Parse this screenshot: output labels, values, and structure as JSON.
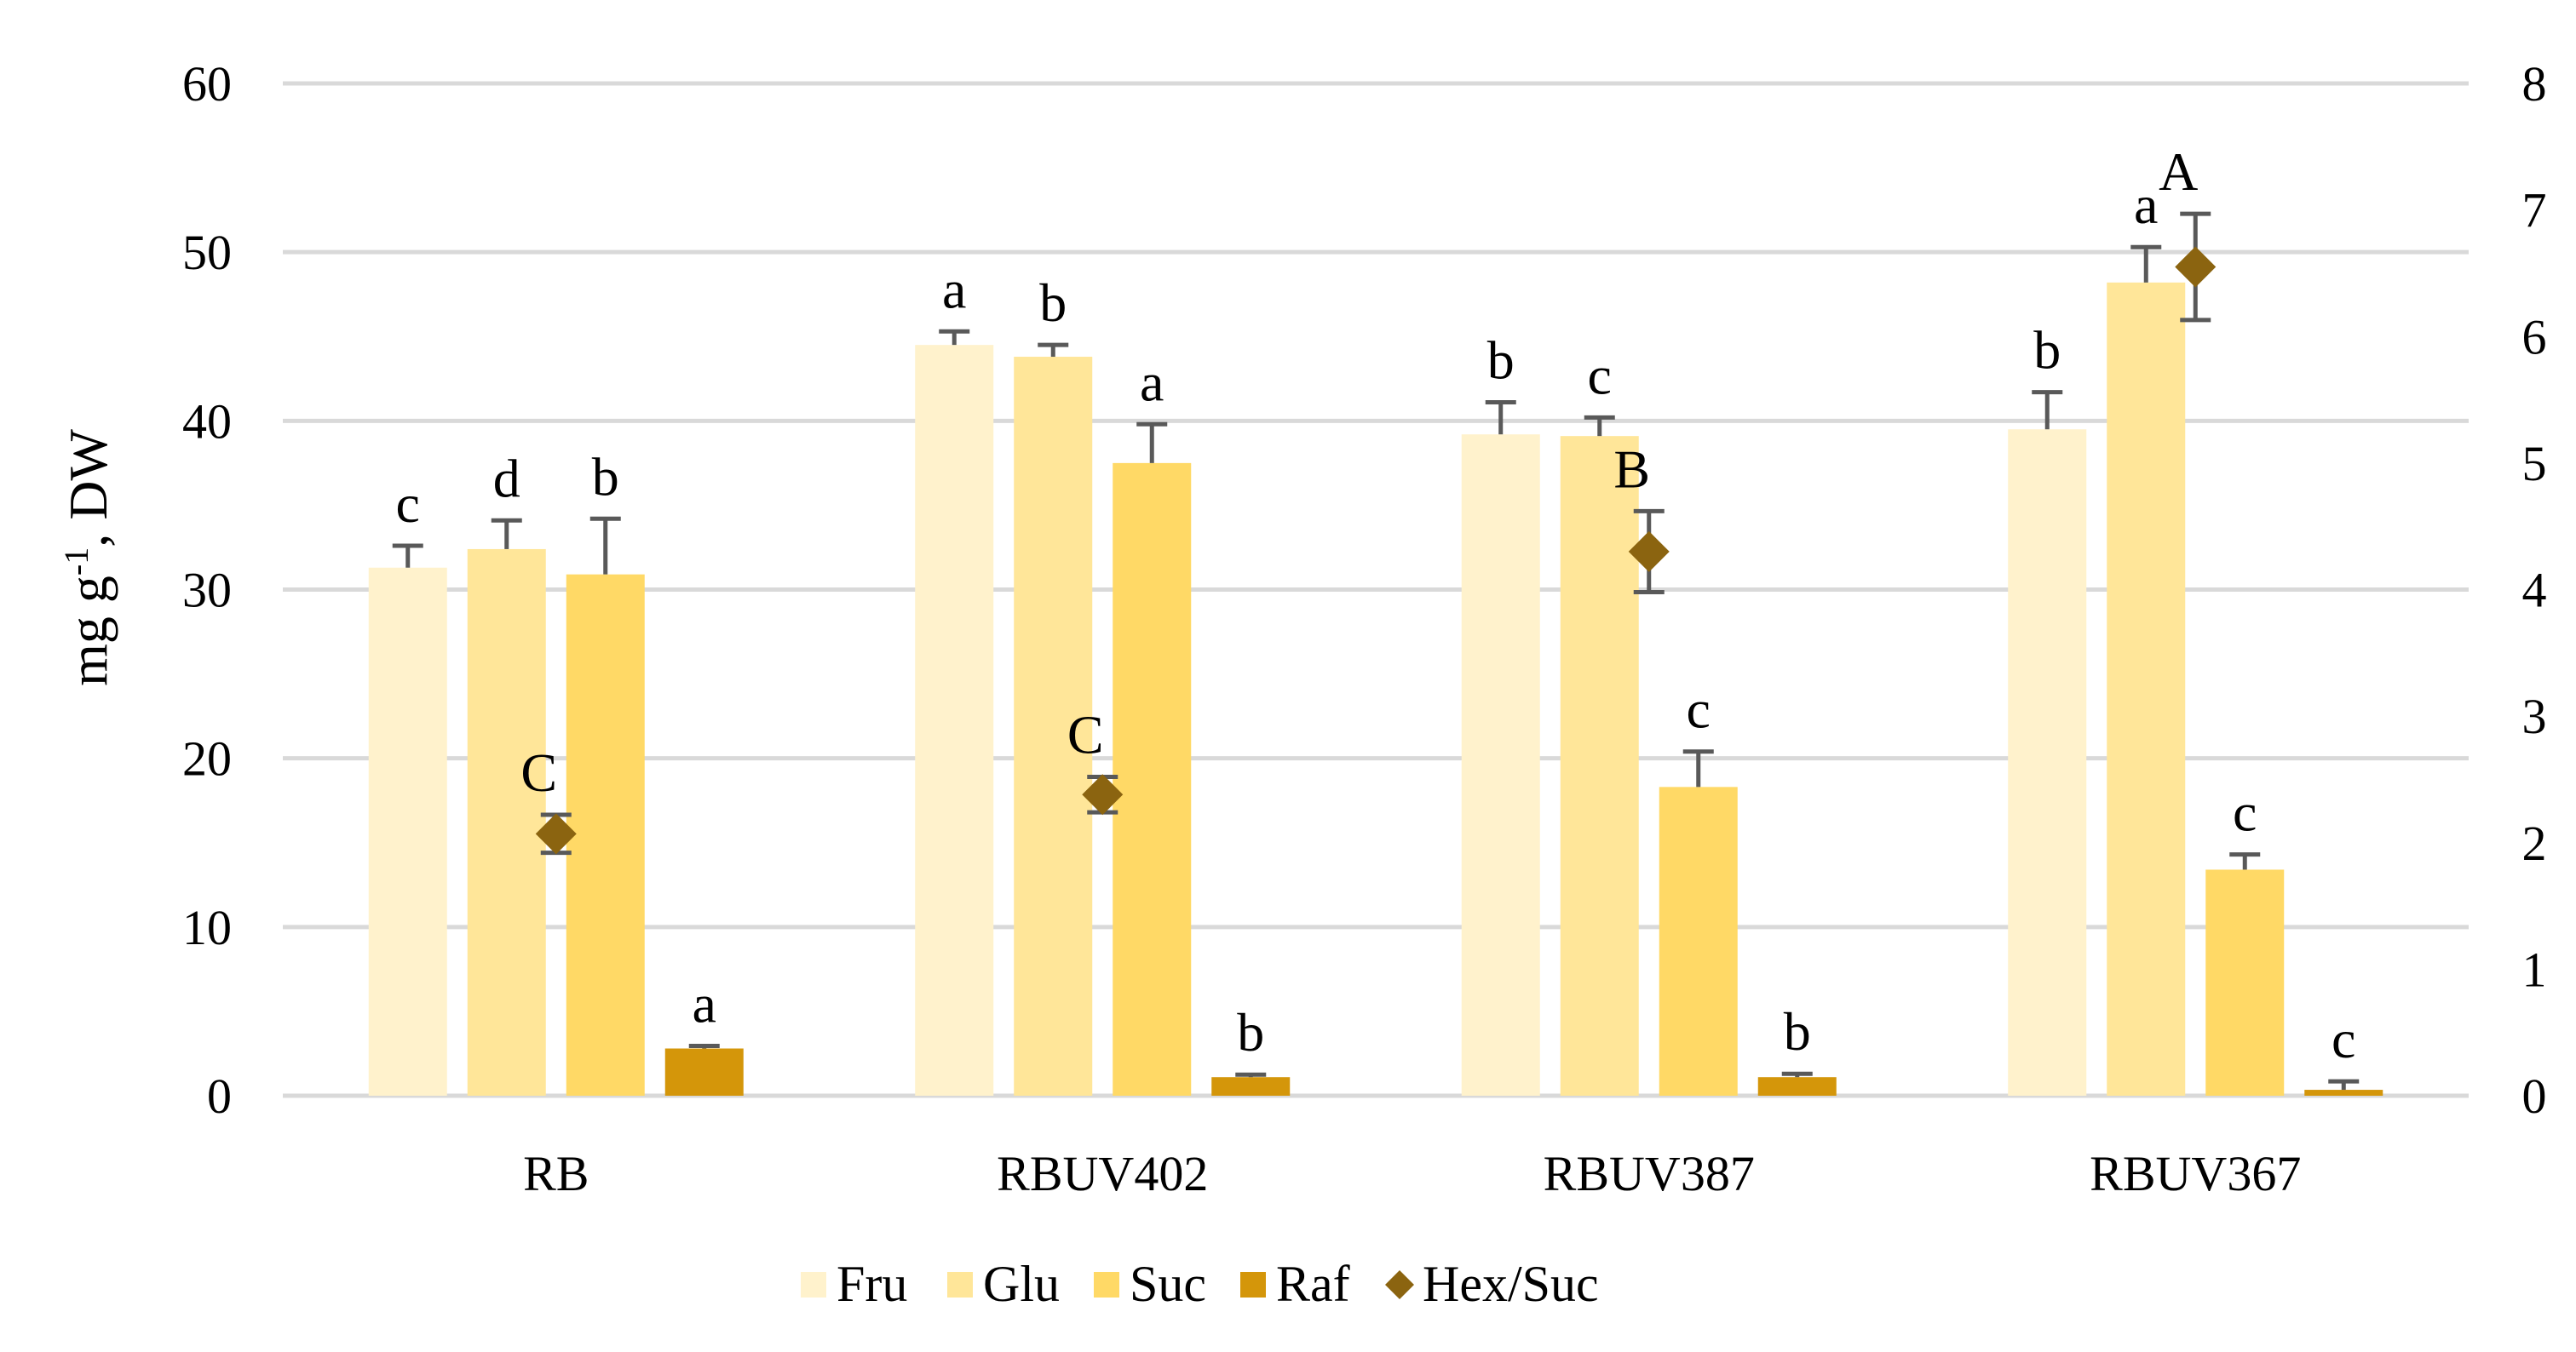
{
  "chart_data": {
    "type": "bar",
    "categories": [
      "RB",
      "RBUV402",
      "RBUV387",
      "RBUV367"
    ],
    "ylabel": "mg g",
    "ylabel_sup": "-1",
    "ylabel_rest": ", DW",
    "ylim": [
      0,
      60
    ],
    "y_ticks": [
      "0",
      "10",
      "20",
      "30",
      "40",
      "50",
      "60"
    ],
    "y2lim": [
      0,
      8
    ],
    "y2_ticks": [
      "0",
      "1",
      "2",
      "3",
      "4",
      "5",
      "6",
      "7",
      "8"
    ],
    "grid": true,
    "legend_position": "bottom",
    "series": [
      {
        "name": "Fru",
        "color": "#FFF2CC",
        "values": [
          31.3,
          44.5,
          39.2,
          39.5
        ],
        "errors": [
          1.3,
          0.8,
          1.9,
          2.2
        ],
        "letters": [
          "c",
          "a",
          "b",
          "b"
        ]
      },
      {
        "name": "Glu",
        "color": "#FFE699",
        "values": [
          32.4,
          43.8,
          39.1,
          48.2
        ],
        "errors": [
          1.7,
          0.7,
          1.1,
          2.1
        ],
        "letters": [
          "d",
          "b",
          "c",
          "a"
        ]
      },
      {
        "name": "Suc",
        "color": "#FFD966",
        "values": [
          30.9,
          37.5,
          18.3,
          13.4
        ],
        "errors": [
          3.3,
          2.3,
          2.1,
          0.9
        ],
        "letters": [
          "b",
          "a",
          "c",
          "c"
        ]
      },
      {
        "name": "Raf",
        "color": "#D4960A",
        "values": [
          2.8,
          1.1,
          1.1,
          0.35
        ],
        "errors": [
          0.15,
          0.15,
          0.2,
          0.5
        ],
        "letters": [
          "a",
          "b",
          "b",
          "c"
        ]
      }
    ],
    "line_series": {
      "name": "Hex/Suc",
      "axis": "secondary",
      "color": "#8B6410",
      "values": [
        2.07,
        2.38,
        4.3,
        6.55
      ],
      "errors": [
        0.15,
        0.14,
        0.32,
        0.42
      ],
      "letters": [
        "C",
        "C",
        "B",
        "A"
      ]
    }
  }
}
